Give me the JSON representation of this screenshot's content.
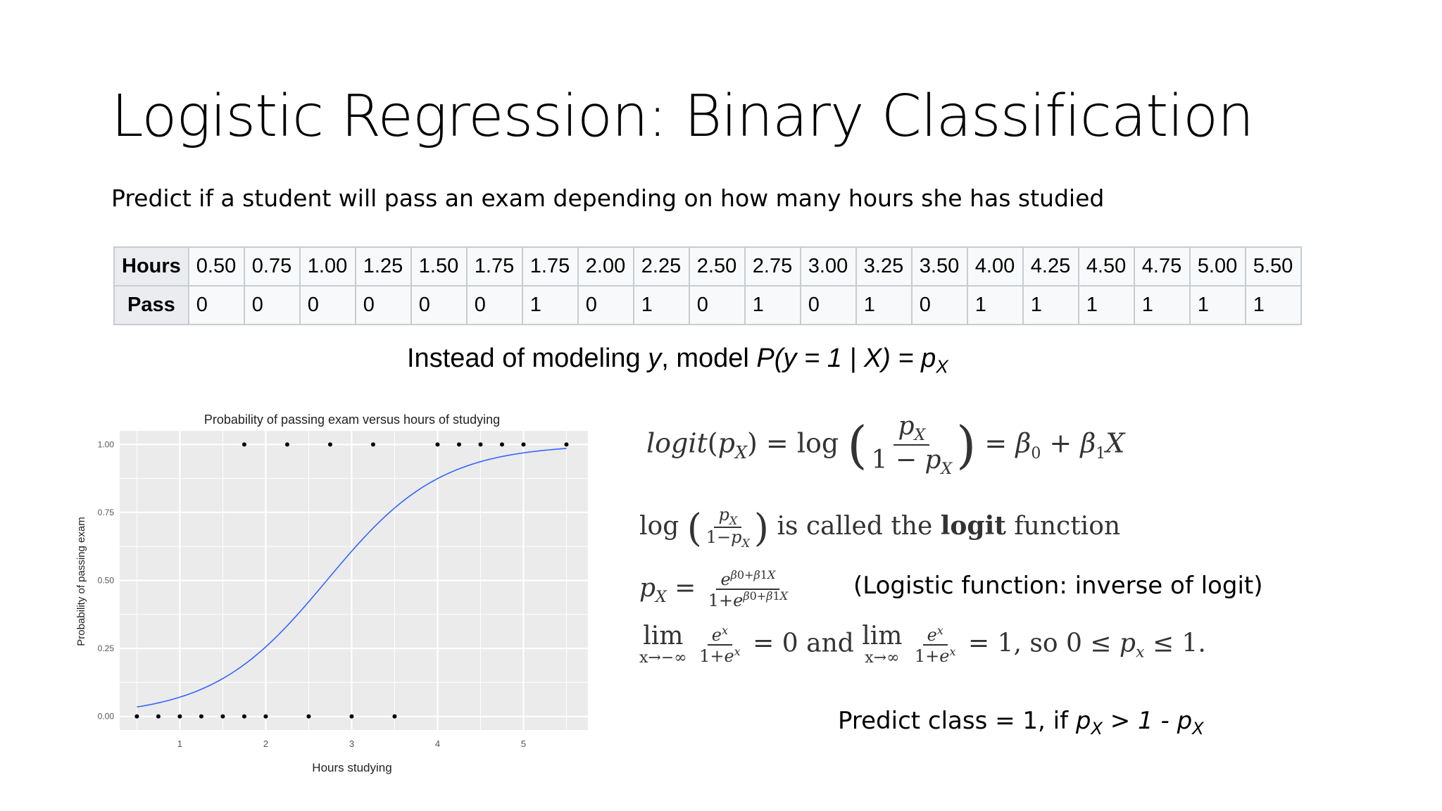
{
  "slide": {
    "title": "Logistic Regression: Binary Classification",
    "subtitle": "Predict if a student will pass an exam depending on how many hours she has studied"
  },
  "table": {
    "row_headers": [
      "Hours",
      "Pass"
    ],
    "hours": [
      "0.50",
      "0.75",
      "1.00",
      "1.25",
      "1.50",
      "1.75",
      "1.75",
      "2.00",
      "2.25",
      "2.50",
      "2.75",
      "3.00",
      "3.25",
      "3.50",
      "4.00",
      "4.25",
      "4.50",
      "4.75",
      "5.00",
      "5.50"
    ],
    "pass": [
      "0",
      "0",
      "0",
      "0",
      "0",
      "0",
      "1",
      "0",
      "1",
      "0",
      "1",
      "0",
      "1",
      "0",
      "1",
      "1",
      "1",
      "1",
      "1",
      "1"
    ]
  },
  "model_line": {
    "prefix": "Instead of modeling ",
    "y": "y",
    "middle": ", model ",
    "prob": "P(y = 1 | X)",
    "equals": " = p",
    "sub": "X"
  },
  "chart_data": {
    "type": "scatter",
    "title": "Probability of passing exam versus hours of studying",
    "xlabel": "Hours studying",
    "ylabel": "Probability of passing exam",
    "xlim": [
      0.3,
      5.75
    ],
    "ylim": [
      -0.05,
      1.05
    ],
    "xticks": [
      "1",
      "2",
      "3",
      "4",
      "5"
    ],
    "yticks": [
      "0.00",
      "0.25",
      "0.50",
      "0.75",
      "1.00"
    ],
    "grid": true,
    "points": {
      "x": [
        0.5,
        0.75,
        1.0,
        1.25,
        1.5,
        1.75,
        1.75,
        2.0,
        2.25,
        2.5,
        2.75,
        3.0,
        3.25,
        3.5,
        4.0,
        4.25,
        4.5,
        4.75,
        5.0,
        5.5
      ],
      "y": [
        0,
        0,
        0,
        0,
        0,
        0,
        1,
        0,
        1,
        0,
        1,
        0,
        1,
        0,
        1,
        1,
        1,
        1,
        1,
        1
      ]
    },
    "fit": {
      "type": "logistic",
      "intercept": -4.0777,
      "slope": 1.5046
    },
    "colors": {
      "panel": "#ebebeb",
      "grid": "#ffffff",
      "curve": "#3366ff",
      "points": "#000000"
    }
  },
  "equations": {
    "logit_lhs_func": "logit",
    "logit_px": "p",
    "logit_sub": "X",
    "log": "log",
    "one_minus": "1 − ",
    "rhs": "= β",
    "called_text": " is called the ",
    "logit_bold": "logit",
    "function_text": " function",
    "logistic_note": "(Logistic function: inverse of logit)",
    "lim": "lim",
    "lim_neg": "x→−∞",
    "lim_pos": "x→∞",
    "and": " and ",
    "so_text": ", so 0 ≤ ",
    "le_one": " ≤ 1."
  },
  "predict": {
    "prefix": "Predict class = 1, if ",
    "p": "p",
    "sub": "X",
    "middle": " > 1 - ",
    "p2": "p",
    "sub2": "X"
  }
}
